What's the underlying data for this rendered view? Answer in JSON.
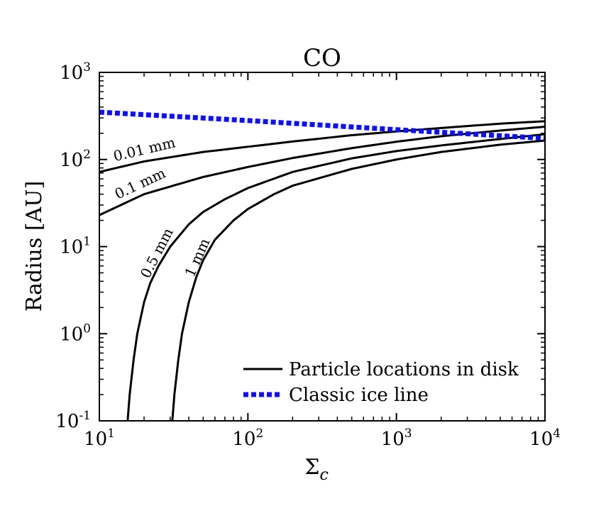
{
  "chart_data": {
    "type": "line",
    "title": "CO",
    "xlabel": "Σ",
    "xlabel_sub": "c",
    "ylabel": "Radius [AU]",
    "x_scale": "log",
    "y_scale": "log",
    "xlim": [
      10,
      10000
    ],
    "ylim": [
      0.1,
      1000
    ],
    "x_ticks": [
      {
        "value": 10,
        "base": "10",
        "exp": "1"
      },
      {
        "value": 100,
        "base": "10",
        "exp": "2"
      },
      {
        "value": 1000,
        "base": "10",
        "exp": "3"
      },
      {
        "value": 10000,
        "base": "10",
        "exp": "4"
      }
    ],
    "y_ticks": [
      {
        "value": 0.1,
        "base": "10",
        "exp": "-1"
      },
      {
        "value": 1,
        "base": "10",
        "exp": "0"
      },
      {
        "value": 10,
        "base": "10",
        "exp": "1"
      },
      {
        "value": 100,
        "base": "10",
        "exp": "2"
      },
      {
        "value": 1000,
        "base": "10",
        "exp": "3"
      }
    ],
    "legend_position": "bottom-right",
    "series": [
      {
        "label": "0.01 mm",
        "style": "solid",
        "color": "#000000",
        "x": [
          10,
          20,
          50,
          100,
          200,
          500,
          1000,
          2000,
          5000,
          10000
        ],
        "y": [
          72,
          95,
          122,
          140,
          161,
          190,
          210,
          230,
          258,
          275
        ]
      },
      {
        "label": "0.1 mm",
        "style": "solid",
        "color": "#000000",
        "x": [
          10,
          20,
          50,
          100,
          200,
          500,
          1000,
          2000,
          5000,
          10000
        ],
        "y": [
          23,
          40,
          63,
          82,
          104,
          135,
          160,
          185,
          215,
          238
        ]
      },
      {
        "label": "0.5 mm",
        "style": "solid",
        "color": "#000000",
        "x": [
          15.5,
          16,
          17,
          18,
          20,
          22,
          25,
          30,
          40,
          50,
          70,
          100,
          200,
          500,
          1000,
          2000,
          5000,
          10000
        ],
        "y": [
          0.1,
          0.2,
          0.5,
          1,
          2.3,
          3.8,
          6,
          10,
          18,
          25,
          35,
          47,
          72,
          103,
          125,
          145,
          172,
          195
        ]
      },
      {
        "label": "1 mm",
        "style": "solid",
        "color": "#000000",
        "x": [
          31,
          32,
          34,
          36,
          40,
          45,
          50,
          60,
          80,
          100,
          150,
          200,
          500,
          1000,
          2000,
          5000,
          10000
        ],
        "y": [
          0.1,
          0.2,
          0.5,
          1,
          2.3,
          4.5,
          7,
          12,
          20,
          27,
          40,
          50,
          78,
          100,
          122,
          148,
          165
        ]
      },
      {
        "label": "Classic ice line",
        "style": "dotted",
        "color": "#1010ee",
        "x": [
          10,
          100,
          1000,
          10000
        ],
        "y": [
          350,
          280,
          220,
          175
        ]
      }
    ],
    "legend": [
      {
        "label": "Particle locations in disk",
        "style": "solid",
        "color": "#000000"
      },
      {
        "label": "Classic ice line",
        "style": "dotted",
        "color": "#1010ee"
      }
    ]
  }
}
